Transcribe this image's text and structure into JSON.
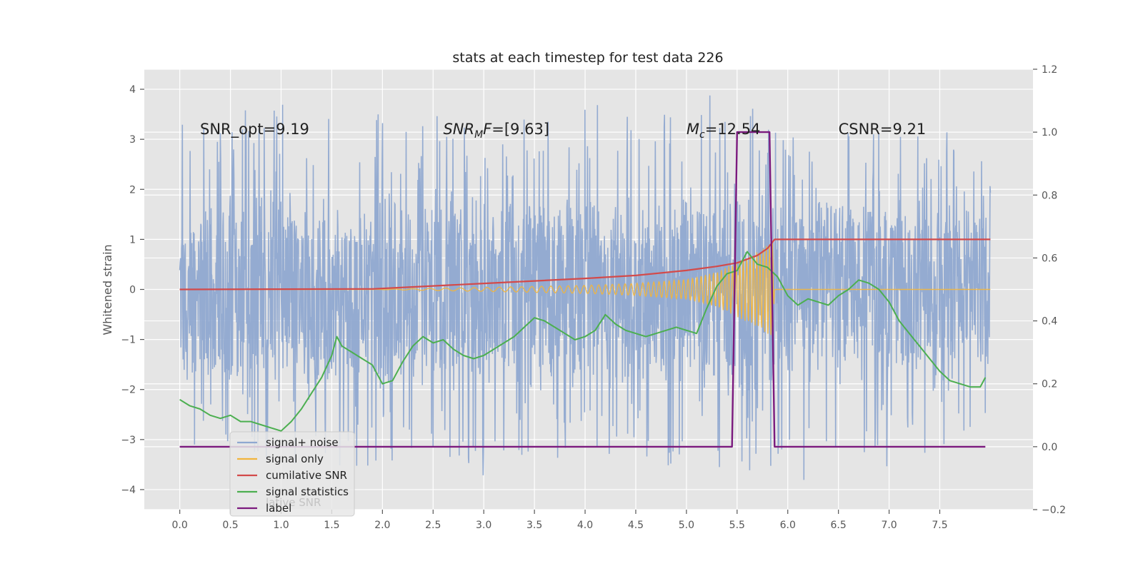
{
  "chart_data": {
    "type": "line",
    "title": "stats at each timestep for test data 226",
    "xlabel": "",
    "ylabel": "Whitened strain",
    "ylabel_right": "",
    "xlim": [
      -0.35,
      8.42
    ],
    "ylim": [
      -4.4,
      4.4
    ],
    "ylim_right": [
      -0.2,
      1.2
    ],
    "x_ticks": [
      0.0,
      0.5,
      1.0,
      1.5,
      2.0,
      2.5,
      3.0,
      3.5,
      4.0,
      4.5,
      5.0,
      5.5,
      6.0,
      6.5,
      7.0,
      7.5
    ],
    "x_tick_labels": [
      "0.0",
      "0.5",
      "1.0",
      "1.5",
      "2.0",
      "2.5",
      "3.0",
      "3.5",
      "4.0",
      "4.5",
      "5.0",
      "5.5",
      "6.0",
      "6.5",
      "7.0",
      "7.5"
    ],
    "y_ticks": [
      4,
      3,
      2,
      1,
      0,
      -1,
      -2,
      -3,
      -4
    ],
    "y_tick_labels": [
      "4",
      "3",
      "2",
      "1",
      "0",
      "−1",
      "−2",
      "−3",
      "−4"
    ],
    "y_ticks_right": [
      1.2,
      1.0,
      0.8,
      0.6,
      0.4,
      0.2,
      0.0,
      -0.2
    ],
    "y_tick_labels_right": [
      "1.2",
      "1.0",
      "0.8",
      "0.6",
      "0.4",
      "0.2",
      "0.0",
      "−0.2"
    ],
    "grid": true,
    "legend_position": "lower-left",
    "colors": {
      "plot_bg": "#e5e5e5",
      "grid": "#ffffff",
      "noise": "#8fa8d0",
      "signal": "#f2b53c",
      "csnr": "#d34a4a",
      "stats": "#4caf50",
      "label": "#7b1a7e"
    },
    "annotations": [
      {
        "x": 0.2,
        "y": 3.2,
        "text": "SNR_opt=9.19"
      },
      {
        "x": 2.6,
        "y": 3.2,
        "text": "SNRMF=[9.63]"
      },
      {
        "x": 5.0,
        "y": 3.2,
        "text": "Mc=12.54"
      },
      {
        "x": 6.5,
        "y": 3.2,
        "text": "CSNR=9.21"
      }
    ],
    "annotation_display": {
      "mf": {
        "base": "SNR",
        "sub": "M",
        "rest": "F=[9.63]"
      },
      "mc": {
        "base": "M",
        "sub": "c",
        "rest": "=12.54"
      }
    },
    "legend": [
      {
        "key": "noise",
        "label": "signal+ noise"
      },
      {
        "key": "signal",
        "label": "signal only"
      },
      {
        "key": "csnr",
        "label": "cumilative SNR"
      },
      {
        "key": "stats",
        "label": "signal statistics"
      },
      {
        "key": "label",
        "label": "label"
      }
    ],
    "legend_ghost_text": "lative SNR",
    "series": [
      {
        "name": "signal+ noise",
        "key": "noise",
        "axis": "left",
        "x_range": [
          0.0,
          8.0
        ],
        "envelope": {
          "x": [
            0.0,
            1.0,
            2.0,
            3.0,
            4.0,
            5.0,
            5.5,
            6.0,
            7.0,
            8.0
          ],
          "upper": [
            2.2,
            2.4,
            2.3,
            2.2,
            2.4,
            2.3,
            2.8,
            2.1,
            2.2,
            1.9
          ],
          "lower": [
            -2.0,
            -2.3,
            -2.3,
            -2.4,
            -2.3,
            -2.3,
            -2.4,
            -2.5,
            -2.3,
            -1.8
          ],
          "core": [
            1.3,
            1.4,
            1.4,
            1.4,
            1.4,
            1.4,
            1.5,
            1.3,
            1.4,
            1.3
          ]
        }
      },
      {
        "name": "signal only",
        "key": "signal",
        "axis": "left",
        "x_range": [
          0.0,
          8.0
        ],
        "envelope": {
          "x": [
            0.0,
            1.9,
            3.0,
            4.0,
            4.5,
            5.0,
            5.3,
            5.5,
            5.7,
            5.85,
            5.87,
            8.0
          ],
          "amp": [
            0.0,
            0.0,
            0.04,
            0.08,
            0.12,
            0.2,
            0.35,
            0.55,
            0.75,
            0.95,
            0.0,
            0.0
          ]
        }
      },
      {
        "name": "cumilative SNR",
        "key": "csnr",
        "axis": "left",
        "x": [
          0.0,
          1.0,
          1.9,
          2.5,
          3.0,
          3.5,
          4.0,
          4.5,
          5.0,
          5.3,
          5.5,
          5.7,
          5.8,
          5.87,
          6.0,
          7.0,
          8.0
        ],
        "y": [
          0.0,
          0.005,
          0.01,
          0.07,
          0.12,
          0.17,
          0.22,
          0.28,
          0.38,
          0.46,
          0.53,
          0.68,
          0.82,
          1.0,
          1.0,
          1.0,
          1.0
        ]
      },
      {
        "name": "signal statistics",
        "key": "stats",
        "axis": "right",
        "x": [
          0.0,
          0.1,
          0.2,
          0.3,
          0.4,
          0.5,
          0.6,
          0.7,
          0.8,
          0.9,
          1.0,
          1.1,
          1.2,
          1.3,
          1.4,
          1.5,
          1.55,
          1.6,
          1.7,
          1.8,
          1.9,
          2.0,
          2.1,
          2.2,
          2.3,
          2.4,
          2.5,
          2.6,
          2.7,
          2.8,
          2.9,
          3.0,
          3.1,
          3.2,
          3.3,
          3.4,
          3.5,
          3.6,
          3.7,
          3.8,
          3.9,
          4.0,
          4.1,
          4.2,
          4.3,
          4.4,
          4.5,
          4.6,
          4.7,
          4.8,
          4.9,
          5.0,
          5.1,
          5.2,
          5.3,
          5.4,
          5.5,
          5.6,
          5.7,
          5.8,
          5.9,
          6.0,
          6.1,
          6.2,
          6.3,
          6.4,
          6.5,
          6.6,
          6.7,
          6.8,
          6.9,
          7.0,
          7.1,
          7.2,
          7.3,
          7.4,
          7.5,
          7.6,
          7.7,
          7.8,
          7.9,
          7.95
        ],
        "y": [
          0.15,
          0.13,
          0.12,
          0.1,
          0.09,
          0.1,
          0.08,
          0.08,
          0.07,
          0.06,
          0.05,
          0.08,
          0.12,
          0.17,
          0.22,
          0.29,
          0.35,
          0.32,
          0.3,
          0.28,
          0.26,
          0.2,
          0.21,
          0.27,
          0.32,
          0.35,
          0.33,
          0.34,
          0.31,
          0.29,
          0.28,
          0.29,
          0.31,
          0.33,
          0.35,
          0.38,
          0.41,
          0.4,
          0.38,
          0.36,
          0.34,
          0.35,
          0.37,
          0.42,
          0.39,
          0.37,
          0.36,
          0.35,
          0.36,
          0.37,
          0.38,
          0.37,
          0.36,
          0.44,
          0.51,
          0.55,
          0.56,
          0.62,
          0.58,
          0.57,
          0.54,
          0.48,
          0.45,
          0.47,
          0.46,
          0.45,
          0.48,
          0.5,
          0.53,
          0.52,
          0.5,
          0.46,
          0.4,
          0.36,
          0.32,
          0.28,
          0.24,
          0.21,
          0.2,
          0.19,
          0.19,
          0.22
        ]
      },
      {
        "name": "label",
        "key": "label",
        "axis": "right",
        "x": [
          0.0,
          5.45,
          5.5,
          5.82,
          5.87,
          7.95
        ],
        "y": [
          0.0,
          0.0,
          1.0,
          1.0,
          0.0,
          0.0
        ]
      }
    ]
  }
}
